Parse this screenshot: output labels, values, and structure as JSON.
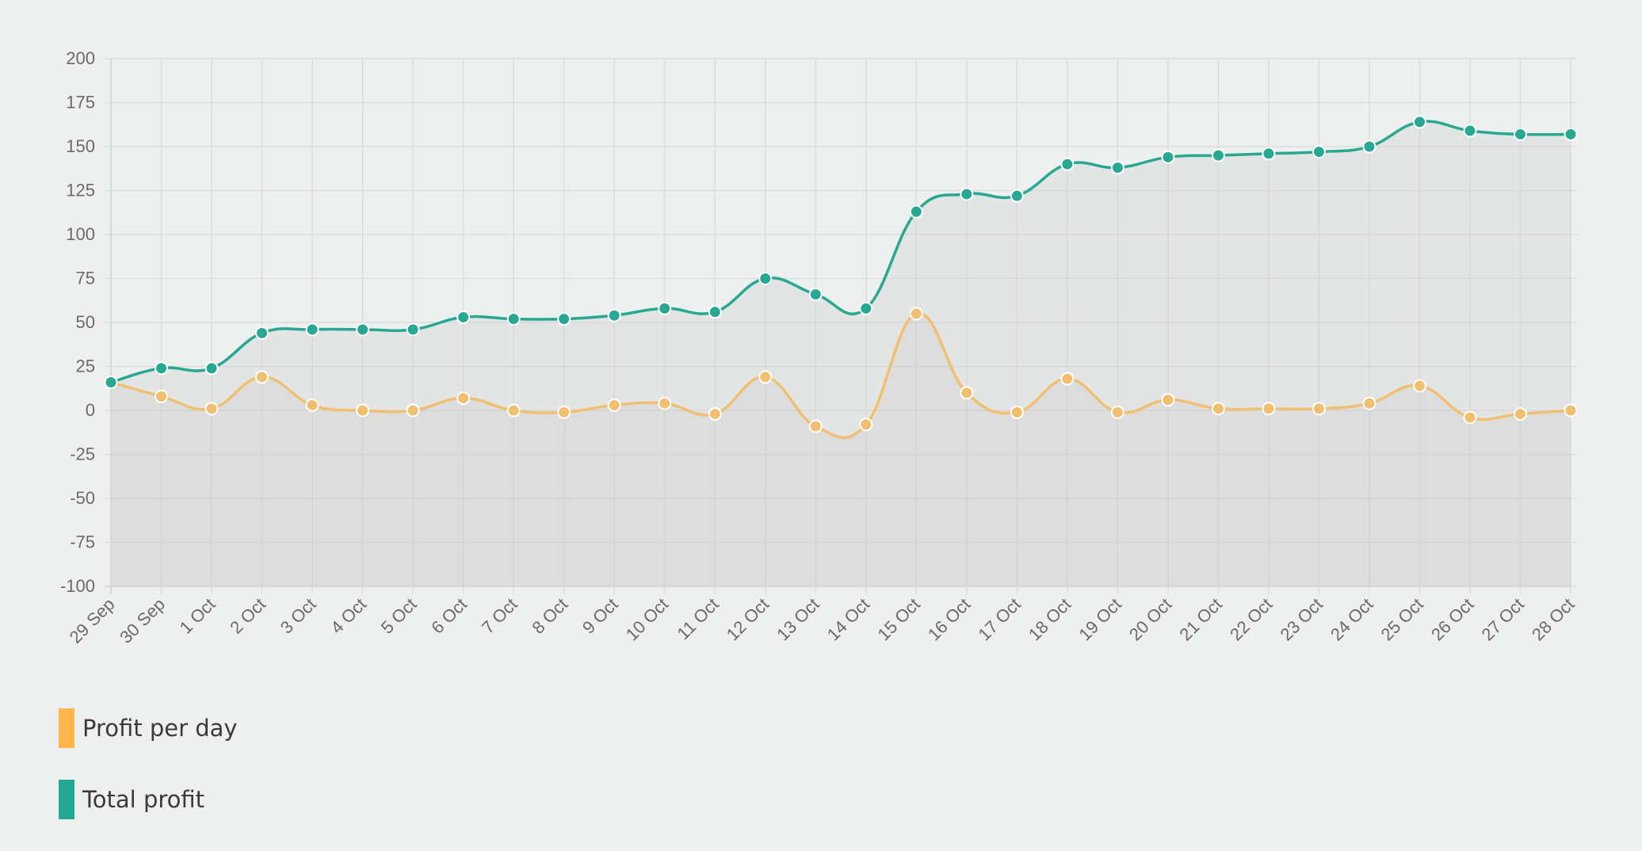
{
  "chart_data": {
    "type": "line",
    "categories": [
      "29 Sep",
      "30 Sep",
      "1 Oct",
      "2 Oct",
      "3 Oct",
      "4 Oct",
      "5 Oct",
      "6 Oct",
      "7 Oct",
      "8 Oct",
      "9 Oct",
      "10 Oct",
      "11 Oct",
      "12 Oct",
      "13 Oct",
      "14 Oct",
      "15 Oct",
      "16 Oct",
      "17 Oct",
      "18 Oct",
      "19 Oct",
      "20 Oct",
      "21 Oct",
      "22 Oct",
      "23 Oct",
      "24 Oct",
      "25 Oct",
      "26 Oct",
      "27 Oct",
      "28 Oct"
    ],
    "ylim": [
      -100,
      200
    ],
    "yticks": [
      200,
      175,
      150,
      125,
      100,
      75,
      50,
      25,
      0,
      -25,
      -50,
      -75,
      -100
    ],
    "grid": true,
    "legend_position": "bottom-left",
    "series": [
      {
        "name": "Profit per day",
        "color": "#f0c070",
        "swatch_color": "#ffb54a",
        "values": [
          16,
          8,
          1,
          19,
          3,
          0,
          0,
          7,
          0,
          -1,
          3,
          4,
          -2,
          19,
          -9,
          -8,
          55,
          10,
          -1,
          18,
          -1,
          6,
          1,
          1,
          1,
          4,
          14,
          -4,
          -2,
          0
        ]
      },
      {
        "name": "Total profit",
        "color": "#26a892",
        "swatch_color": "#22aa92",
        "values": [
          16,
          24,
          24,
          44,
          46,
          46,
          46,
          53,
          52,
          52,
          54,
          58,
          56,
          75,
          66,
          58,
          113,
          123,
          122,
          140,
          138,
          144,
          145,
          146,
          147,
          150,
          164,
          159,
          157,
          157
        ]
      }
    ]
  }
}
